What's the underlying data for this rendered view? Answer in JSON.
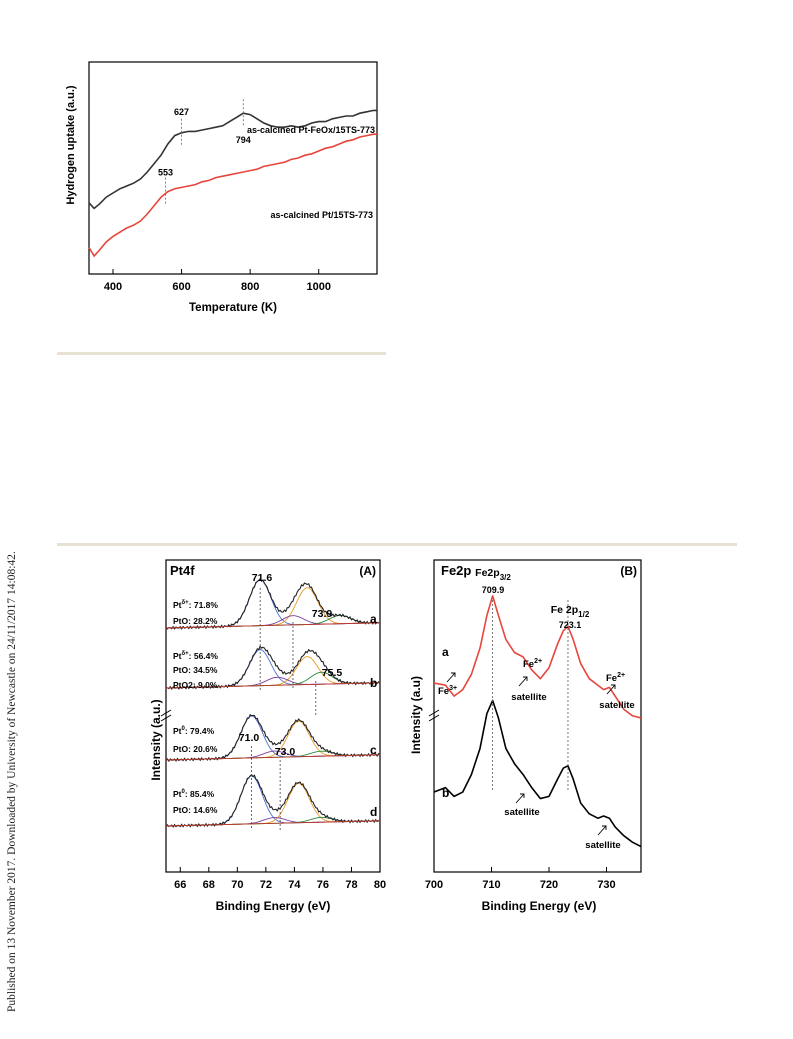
{
  "side_note": "Published on 13 November 2017. Downloaded by University of Newcastle on 24/11/2017 14:08:42.",
  "chart_data": [
    {
      "type": "line",
      "xlabel": "Temperature (K)",
      "ylabel": "Hydrogen uptake (a.u.)",
      "xlim": [
        330,
        1170
      ],
      "x_ticks": [
        "400",
        "600",
        "800",
        "1000"
      ],
      "series": [
        {
          "name": "as-calcined Pt-FeOx/15TS-773",
          "color": "#333333",
          "x": [
            330,
            345,
            360,
            380,
            400,
            420,
            440,
            460,
            480,
            500,
            520,
            540,
            560,
            580,
            600,
            620,
            640,
            660,
            680,
            700,
            720,
            740,
            760,
            780,
            800,
            820,
            840,
            860,
            880,
            900,
            920,
            940,
            960,
            980,
            1000,
            1020,
            1040,
            1060,
            1080,
            1100,
            1120,
            1140,
            1160,
            1170
          ],
          "y": [
            0.38,
            0.34,
            0.37,
            0.42,
            0.45,
            0.48,
            0.5,
            0.52,
            0.55,
            0.6,
            0.66,
            0.72,
            0.8,
            0.86,
            0.88,
            0.89,
            0.89,
            0.9,
            0.91,
            0.92,
            0.93,
            0.96,
            0.99,
            1.02,
            1.01,
            0.98,
            0.95,
            0.93,
            0.92,
            0.92,
            0.93,
            0.92,
            0.93,
            0.95,
            0.96,
            0.96,
            0.98,
            0.99,
            1.0,
            1.0,
            1.02,
            1.03,
            1.04,
            1.04
          ]
        },
        {
          "name": "as-calcined Pt/15TS-773",
          "color": "#e8453c",
          "x": [
            330,
            345,
            360,
            380,
            400,
            420,
            440,
            460,
            480,
            500,
            520,
            540,
            560,
            580,
            600,
            620,
            640,
            660,
            680,
            700,
            720,
            740,
            760,
            780,
            800,
            820,
            840,
            860,
            880,
            900,
            920,
            940,
            960,
            980,
            1000,
            1020,
            1040,
            1060,
            1080,
            1100,
            1120,
            1140,
            1160,
            1170
          ],
          "y": [
            0.06,
            0.0,
            0.04,
            0.1,
            0.14,
            0.17,
            0.2,
            0.22,
            0.25,
            0.3,
            0.36,
            0.42,
            0.46,
            0.48,
            0.49,
            0.5,
            0.51,
            0.53,
            0.54,
            0.56,
            0.57,
            0.58,
            0.59,
            0.6,
            0.61,
            0.62,
            0.64,
            0.65,
            0.66,
            0.67,
            0.69,
            0.7,
            0.72,
            0.73,
            0.75,
            0.77,
            0.78,
            0.8,
            0.82,
            0.83,
            0.85,
            0.86,
            0.87,
            0.87
          ]
        }
      ],
      "peak_labels": [
        {
          "label": "627",
          "x": 600
        },
        {
          "label": "794",
          "x": 780
        },
        {
          "label": "553",
          "x": 553
        }
      ]
    },
    {
      "type": "line",
      "panel_title": "Pt4f",
      "panel_tag": "(A)",
      "xlabel": "Binding Energy (eV)",
      "ylabel": "Intensity (a.u.)",
      "xlim": [
        65,
        80
      ],
      "x_ticks": [
        "66",
        "68",
        "70",
        "72",
        "74",
        "76",
        "78",
        "80"
      ],
      "peak_labels": [
        "71.6",
        "73.9",
        "75.5",
        "71.0",
        "73.0"
      ],
      "spectra": [
        {
          "label": "a",
          "lines": [
            "Pt δ+: 71.8%",
            "PtO: 28.2%"
          ],
          "components": [
            {
              "center": 71.6,
              "height": 1.0
            },
            {
              "center": 74.9,
              "height": 0.8
            },
            {
              "center": 73.9,
              "height": 0.2
            },
            {
              "center": 77.2,
              "height": 0.18
            }
          ]
        },
        {
          "label": "b",
          "lines": [
            "Pt δ+: 56.4%",
            "PtO: 34.5%",
            "PtO2: 9.0%"
          ],
          "components": [
            {
              "center": 71.6,
              "height": 0.9
            },
            {
              "center": 74.9,
              "height": 0.7
            },
            {
              "center": 72.8,
              "height": 0.2
            },
            {
              "center": 75.9,
              "height": 0.3
            }
          ]
        },
        {
          "label": "c",
          "lines": [
            "Pt 0: 79.4%",
            "PtO: 20.6%"
          ],
          "components": [
            {
              "center": 71.0,
              "height": 1.0
            },
            {
              "center": 74.3,
              "height": 0.85
            },
            {
              "center": 72.6,
              "height": 0.15
            },
            {
              "center": 75.9,
              "height": 0.12
            }
          ]
        },
        {
          "label": "d",
          "lines": [
            "Pt 0: 85.4%",
            "PtO: 14.6%"
          ],
          "components": [
            {
              "center": 71.0,
              "height": 1.0
            },
            {
              "center": 74.3,
              "height": 0.82
            },
            {
              "center": 72.6,
              "height": 0.12
            },
            {
              "center": 75.9,
              "height": 0.1
            }
          ]
        }
      ]
    },
    {
      "type": "line",
      "panel_title": "Fe2p",
      "panel_tag": "(B)",
      "xlabel": "Binding Energy (eV)",
      "ylabel": "Intensity (a.u)",
      "xlim": [
        700,
        736
      ],
      "x_ticks": [
        "700",
        "710",
        "720",
        "730"
      ],
      "peak_labels": [
        {
          "main": "Fe2p",
          "sub": "3/2",
          "value": "709.9",
          "x": 710.2
        },
        {
          "main": "Fe 2p",
          "sub": "1/2",
          "value": "723.1",
          "x": 723.3
        }
      ],
      "series": [
        {
          "name": "a",
          "color": "#e8453c",
          "x": [
            700,
            702,
            703.5,
            705,
            706.5,
            708,
            709.2,
            710.2,
            711.2,
            712.5,
            714,
            715.5,
            717,
            718.5,
            720,
            721.5,
            722.5,
            723.3,
            724.2,
            725.5,
            727,
            728.5,
            729.5,
            730.5,
            731.5,
            733,
            734.5,
            736
          ],
          "y": [
            0.72,
            0.71,
            0.66,
            0.69,
            0.76,
            0.88,
            1.03,
            1.12,
            1.03,
            0.92,
            0.86,
            0.84,
            0.78,
            0.74,
            0.79,
            0.9,
            0.96,
            0.98,
            0.92,
            0.81,
            0.74,
            0.71,
            0.69,
            0.7,
            0.66,
            0.6,
            0.57,
            0.56
          ]
        },
        {
          "name": "b",
          "color": "#000000",
          "x": [
            700,
            702,
            703.5,
            705,
            706.5,
            708,
            709.2,
            710.2,
            711.2,
            712.5,
            714,
            715.5,
            717,
            718.5,
            720,
            721.5,
            722.5,
            723.3,
            724.2,
            725.5,
            727,
            728.5,
            729.5,
            730.5,
            731.5,
            733,
            734.5,
            736
          ],
          "y": [
            0.22,
            0.24,
            0.2,
            0.22,
            0.3,
            0.42,
            0.58,
            0.64,
            0.56,
            0.42,
            0.35,
            0.3,
            0.24,
            0.19,
            0.2,
            0.28,
            0.33,
            0.34,
            0.28,
            0.17,
            0.12,
            0.1,
            0.11,
            0.1,
            0.06,
            0.02,
            -0.01,
            -0.03
          ]
        }
      ],
      "annotations": [
        {
          "text": "Fe",
          "sup": "3+"
        },
        {
          "text": "Fe",
          "sup": "2+"
        },
        {
          "text": "satellite"
        },
        {
          "text": "Fe",
          "sup": "2+"
        },
        {
          "text": "satellite"
        },
        {
          "text": "satellite"
        },
        {
          "text": "satellite"
        }
      ]
    }
  ]
}
